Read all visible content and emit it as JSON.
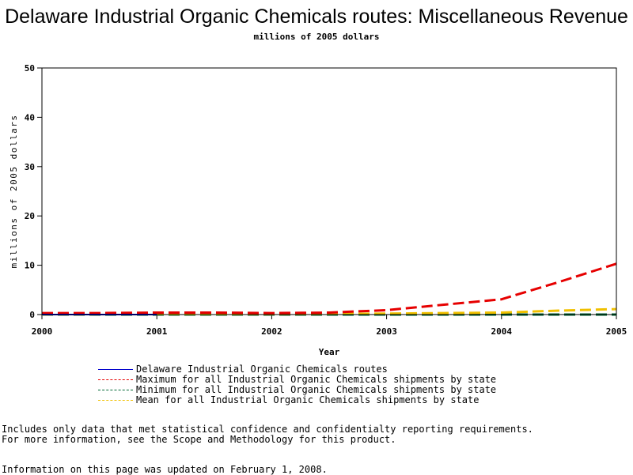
{
  "chart_data": {
    "type": "line",
    "title": "Delaware Industrial Organic Chemicals routes: Miscellaneous Revenue",
    "subtitle": "millions of 2005 dollars",
    "xlabel": "Year",
    "ylabel": "millions of 2005 dollars",
    "xlim": [
      2000,
      2005
    ],
    "ylim": [
      0,
      50
    ],
    "x_ticks": [
      2000,
      2001,
      2002,
      2003,
      2004,
      2005
    ],
    "y_ticks": [
      0,
      10,
      20,
      30,
      40,
      50
    ],
    "grid": false,
    "legend_position": "bottom",
    "series": [
      {
        "name": "Delaware Industrial Organic Chemicals routes",
        "color": "#0000cc",
        "style": "solid",
        "x": [
          2000,
          2000.5,
          2001
        ],
        "y": [
          0.0,
          0.0,
          0.0
        ]
      },
      {
        "name": "Maximum for all Industrial Organic Chemicals shipments by state",
        "color": "#e60000",
        "style": "dashed",
        "x": [
          2000,
          2000.5,
          2001,
          2001.5,
          2002,
          2002.5,
          2003,
          2003.5,
          2004,
          2004.5,
          2005
        ],
        "y": [
          0.3,
          0.3,
          0.4,
          0.4,
          0.3,
          0.4,
          0.9,
          2.0,
          3.1,
          6.6,
          10.3
        ]
      },
      {
        "name": "Minimum for all Industrial Organic Chemicals shipments by state",
        "color": "#006633",
        "style": "dashed",
        "x": [
          2000,
          2001,
          2002,
          2003,
          2004,
          2005
        ],
        "y": [
          0.0,
          0.0,
          0.0,
          0.0,
          0.0,
          0.0
        ]
      },
      {
        "name": "Mean for all Industrial Organic Chemicals shipments by state",
        "color": "#f0c000",
        "style": "dashed",
        "x": [
          2000,
          2001,
          2002,
          2003,
          2003.5,
          2004,
          2004.5,
          2005
        ],
        "y": [
          0.05,
          0.1,
          0.1,
          0.2,
          0.3,
          0.4,
          0.8,
          1.1
        ]
      }
    ]
  },
  "footnotes": {
    "line1": "Includes only data that met statistical confidence and confidentialty reporting requirements.",
    "line2": "For more information, see the Scope and Methodology for this product.",
    "updated": "Information on this page was updated on February 1, 2008."
  }
}
